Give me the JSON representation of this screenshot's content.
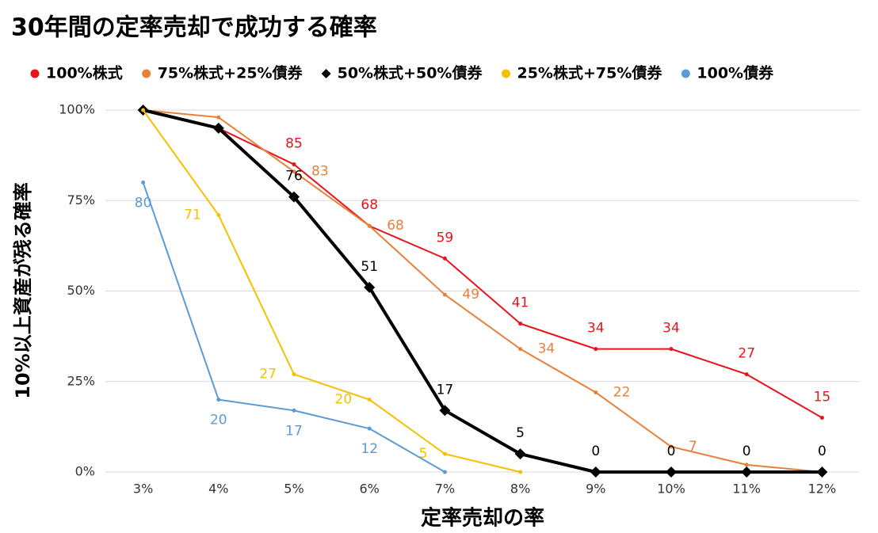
{
  "chart_data": {
    "type": "line",
    "title": "30年間の定率売却で成功する確率",
    "x_label": "定率売却の率",
    "y_label": "10%以上資産が残る確率",
    "categories": [
      "3%",
      "4%",
      "5%",
      "6%",
      "7%",
      "8%",
      "9%",
      "10%",
      "11%",
      "12%"
    ],
    "ylim": [
      0,
      100
    ],
    "yticks": [
      {
        "value": 0,
        "label": "0%"
      },
      {
        "value": 25,
        "label": "25%"
      },
      {
        "value": 50,
        "label": "50%"
      },
      {
        "value": 75,
        "label": "75%"
      },
      {
        "value": 100,
        "label": "100%"
      }
    ],
    "grid": true,
    "legend": "top",
    "series": [
      {
        "name": "100%株式",
        "color": "#e8141c",
        "marker": "circle",
        "values": [
          100,
          95,
          85,
          68,
          59,
          41,
          34,
          34,
          27,
          15
        ],
        "value_labels": [
          null,
          null,
          "85",
          "68",
          "59",
          "41",
          "34",
          "34",
          "27",
          "15"
        ]
      },
      {
        "name": "75%株式+25%債券",
        "color": "#e8803a",
        "marker": "circle",
        "values": [
          100,
          98,
          83,
          68,
          49,
          34,
          22,
          7,
          2,
          0
        ],
        "value_labels": [
          null,
          null,
          "83",
          "68",
          "49",
          "34",
          "22",
          "7",
          null,
          null
        ]
      },
      {
        "name": "50%株式+50%債券",
        "color": "#000000",
        "marker": "diamond",
        "values": [
          100,
          95,
          76,
          51,
          17,
          5,
          0,
          0,
          0,
          0
        ],
        "value_labels": [
          null,
          null,
          "76",
          "51",
          "17",
          "5",
          "0",
          "0",
          "0",
          "0"
        ]
      },
      {
        "name": "25%株式+75%債券",
        "color": "#f5c000",
        "marker": "circle",
        "values": [
          100,
          71,
          27,
          20,
          5,
          0,
          null,
          null,
          null,
          null
        ],
        "value_labels": [
          null,
          "71",
          "27",
          "20",
          "5",
          null,
          null,
          null,
          null,
          null
        ]
      },
      {
        "name": "100%債券",
        "color": "#5b9bd5",
        "marker": "circle",
        "values": [
          80,
          20,
          17,
          12,
          0,
          null,
          null,
          null,
          null,
          null
        ],
        "value_labels": [
          "80",
          "20",
          "17",
          "12",
          null,
          null,
          null,
          null,
          null,
          null
        ]
      }
    ]
  }
}
